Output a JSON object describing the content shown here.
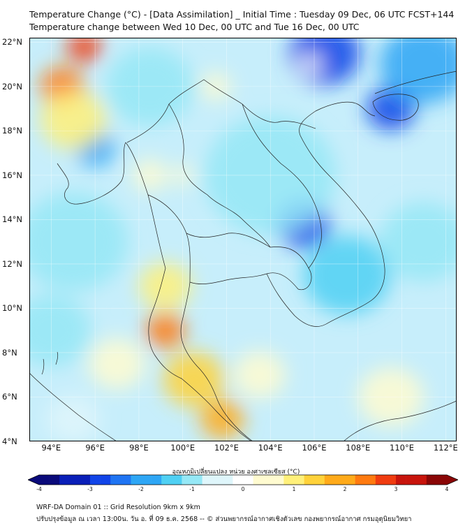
{
  "title": {
    "line1": "Temperature Change (°C) - [Data Assimilation] _ Initial Time : Tuesday 09 Dec, 06 UTC FCST+144",
    "line2": "Temperature change between Wed 10 Dec, 00 UTC and Tue 16 Dec, 00 UTC"
  },
  "map": {
    "lat_labels": [
      "22°N",
      "20°N",
      "18°N",
      "16°N",
      "14°N",
      "12°N",
      "10°N",
      "8°N",
      "6°N",
      "4°N"
    ],
    "lat_values": [
      22,
      20,
      18,
      16,
      14,
      12,
      10,
      8,
      6,
      4
    ],
    "lon_labels": [
      "94°E",
      "96°E",
      "98°E",
      "100°E",
      "102°E",
      "104°E",
      "106°E",
      "108°E",
      "110°E",
      "112°E"
    ],
    "lon_values": [
      94,
      96,
      98,
      100,
      102,
      104,
      106,
      108,
      110,
      112
    ],
    "lon_range": [
      93,
      112.5
    ],
    "lat_range": [
      4,
      22.2
    ],
    "anomalies": [
      {
        "lon": 106.5,
        "lat": 21.5,
        "value": -3.0,
        "spread": 1.6
      },
      {
        "lon": 109.5,
        "lat": 19.0,
        "value": -3.0,
        "spread": 1.1
      },
      {
        "lon": 111.0,
        "lat": 21.0,
        "value": -2.0,
        "spread": 2.0
      },
      {
        "lon": 105.5,
        "lat": 13.8,
        "value": -2.6,
        "spread": 1.2
      },
      {
        "lon": 104.0,
        "lat": 16.0,
        "value": -1.0,
        "spread": 3.0
      },
      {
        "lon": 107.5,
        "lat": 11.5,
        "value": -1.6,
        "spread": 2.0
      },
      {
        "lon": 96.0,
        "lat": 17.2,
        "value": -2.0,
        "spread": 0.9
      },
      {
        "lon": 98.5,
        "lat": 20.0,
        "value": -1.0,
        "spread": 2.0
      },
      {
        "lon": 95.0,
        "lat": 13.0,
        "value": -0.8,
        "spread": 2.5
      },
      {
        "lon": 94.0,
        "lat": 9.0,
        "value": -1.0,
        "spread": 1.8
      },
      {
        "lon": 111.0,
        "lat": 13.0,
        "value": -1.0,
        "spread": 2.0
      },
      {
        "lon": 95.5,
        "lat": 21.8,
        "value": 2.8,
        "spread": 0.8
      },
      {
        "lon": 94.5,
        "lat": 20.0,
        "value": 2.3,
        "spread": 1.0
      },
      {
        "lon": 95.0,
        "lat": 18.5,
        "value": 0.8,
        "spread": 1.5
      },
      {
        "lon": 101.5,
        "lat": 20.0,
        "value": 0.6,
        "spread": 0.7
      },
      {
        "lon": 98.5,
        "lat": 16.0,
        "value": 0.7,
        "spread": 0.8
      },
      {
        "lon": 100.0,
        "lat": 16.0,
        "value": 0.5,
        "spread": 0.5
      },
      {
        "lon": 99.2,
        "lat": 9.0,
        "value": 2.2,
        "spread": 0.9
      },
      {
        "lon": 99.2,
        "lat": 11.0,
        "value": 1.0,
        "spread": 1.2
      },
      {
        "lon": 101.8,
        "lat": 5.0,
        "value": 2.0,
        "spread": 1.0
      },
      {
        "lon": 100.5,
        "lat": 6.8,
        "value": 1.3,
        "spread": 1.4
      },
      {
        "lon": 97.0,
        "lat": 7.5,
        "value": 0.5,
        "spread": 1.3
      },
      {
        "lon": 103.5,
        "lat": 7.0,
        "value": 0.5,
        "spread": 1.2
      },
      {
        "lon": 109.5,
        "lat": 6.0,
        "value": 0.5,
        "spread": 1.5
      },
      {
        "lon": 95.0,
        "lat": 5.0,
        "value": -0.3,
        "spread": 1.2
      }
    ],
    "cities": [
      {
        "lon": 105.8,
        "lat": 21.0,
        "value": 0.2,
        "spread": 0.5
      }
    ]
  },
  "colorbar": {
    "title": "อุณหภูมิเปลี่ยนแปลง หน่วย องศาเซลเซียส (°C)",
    "tick_labels": [
      "-4",
      "-3",
      "-2",
      "-1",
      "0",
      "1",
      "2",
      "3",
      "4"
    ],
    "min": -4,
    "max": 4,
    "colors": [
      "#0a0a7a",
      "#0a1fb8",
      "#1144e8",
      "#1f74f3",
      "#2ea6f5",
      "#4fd0f3",
      "#95e8f6",
      "#dff6fb",
      "#ffffff",
      "#fffbd0",
      "#fff07a",
      "#ffd23a",
      "#ffaa1a",
      "#ff7a10",
      "#f03c10",
      "#c8140c",
      "#8a0606"
    ]
  },
  "footer": {
    "line1": "WRF-DA Domain 01 :: Grid Resolution 9km x 9km",
    "line2": "ปรับปรุงข้อมูล ณ เวลา 13:00น. วัน อ. ที่ 09 ธ.ค. 2568 -- © ส่วนพยากรณ์อากาศเชิงตัวเลข กองพยากรณ์อากาศ กรมอุตุนิยมวิทยา"
  }
}
